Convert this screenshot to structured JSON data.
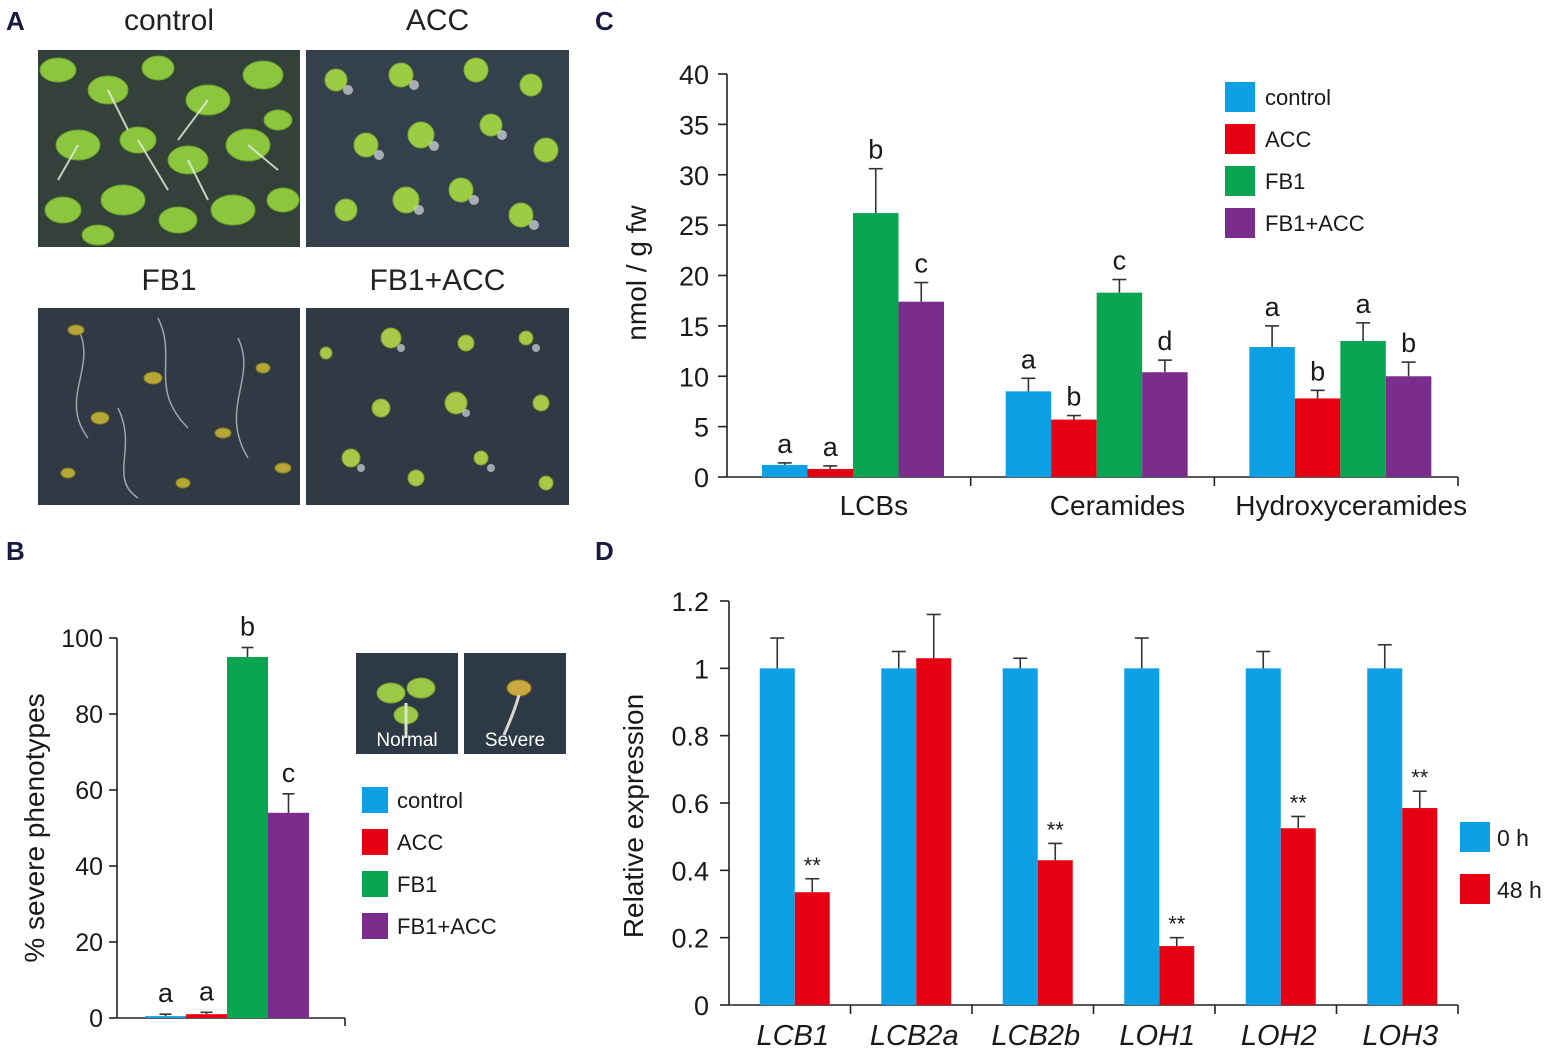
{
  "panel_letters": {
    "a": "A",
    "b": "B",
    "c": "C",
    "d": "D"
  },
  "photos": {
    "control": "control",
    "acc": "ACC",
    "fb1": "FB1",
    "fb1acc": "FB1+ACC",
    "inset_normal": "Normal",
    "inset_severe": "Severe"
  },
  "colors": {
    "control": "#0ea0e4",
    "acc": "#e60012",
    "fb1": "#0aa553",
    "fb1acc": "#7b2d8e",
    "h0": "#0ea0e4",
    "h48": "#e60012"
  },
  "chart_data": [
    {
      "id": "B",
      "type": "bar",
      "title": "",
      "xlabel": "",
      "ylabel": "% severe phenotypes",
      "ylim": [
        0,
        100
      ],
      "yticks": [
        "0",
        "20",
        "40",
        "60",
        "80",
        "100"
      ],
      "categories": [
        "control",
        "ACC",
        "FB1",
        "FB1+ACC"
      ],
      "values": [
        0.5,
        1,
        95,
        54
      ],
      "errors": [
        0.5,
        0.5,
        2.5,
        5
      ],
      "letters": [
        "a",
        "a",
        "b",
        "c"
      ],
      "legend": [
        "control",
        "ACC",
        "FB1",
        "FB1+ACC"
      ]
    },
    {
      "id": "C",
      "type": "bar",
      "title": "",
      "xlabel": "",
      "ylabel": "nmol / g fw",
      "ylim": [
        0,
        40
      ],
      "yticks": [
        "0",
        "5",
        "10",
        "15",
        "20",
        "25",
        "30",
        "35",
        "40"
      ],
      "categories": [
        "LCBs",
        "Ceramides",
        "Hydroxyceramides"
      ],
      "legend": [
        "control",
        "ACC",
        "FB1",
        "FB1+ACC"
      ],
      "series": [
        {
          "name": "control",
          "values": [
            1.2,
            8.5,
            12.9
          ],
          "errors": [
            0.2,
            1.3,
            2.1
          ],
          "letters": [
            "a",
            "a",
            "a"
          ]
        },
        {
          "name": "ACC",
          "values": [
            0.8,
            5.7,
            7.8
          ],
          "errors": [
            0.3,
            0.4,
            0.8
          ],
          "letters": [
            "a",
            "b",
            "b"
          ]
        },
        {
          "name": "FB1",
          "values": [
            26.2,
            18.3,
            13.5
          ],
          "errors": [
            4.4,
            1.3,
            1.8
          ],
          "letters": [
            "b",
            "c",
            "a"
          ]
        },
        {
          "name": "FB1+ACC",
          "values": [
            17.4,
            10.4,
            10.0
          ],
          "errors": [
            1.9,
            1.2,
            1.4
          ],
          "letters": [
            "c",
            "d",
            "b"
          ]
        }
      ]
    },
    {
      "id": "D",
      "type": "bar",
      "title": "",
      "xlabel": "",
      "ylabel": "Relative expression",
      "ylim": [
        0,
        1.2
      ],
      "yticks": [
        "0",
        "0.2",
        "0.4",
        "0.6",
        "0.8",
        "1",
        "1.2"
      ],
      "categories": [
        "LCB1",
        "LCB2a",
        "LCB2b",
        "LOH1",
        "LOH2",
        "LOH3"
      ],
      "legend": [
        "0 h",
        "48 h"
      ],
      "series": [
        {
          "name": "0 h",
          "values": [
            1.0,
            1.0,
            1.0,
            1.0,
            1.0,
            1.0
          ],
          "errors": [
            0.09,
            0.05,
            0.03,
            0.09,
            0.05,
            0.07
          ],
          "stars": [
            "",
            "",
            "",
            "",
            "",
            ""
          ]
        },
        {
          "name": "48 h",
          "values": [
            0.335,
            1.03,
            0.43,
            0.175,
            0.525,
            0.585
          ],
          "errors": [
            0.04,
            0.13,
            0.05,
            0.025,
            0.035,
            0.05
          ],
          "stars": [
            "**",
            "",
            "**",
            "**",
            "**",
            "**"
          ]
        }
      ]
    }
  ]
}
